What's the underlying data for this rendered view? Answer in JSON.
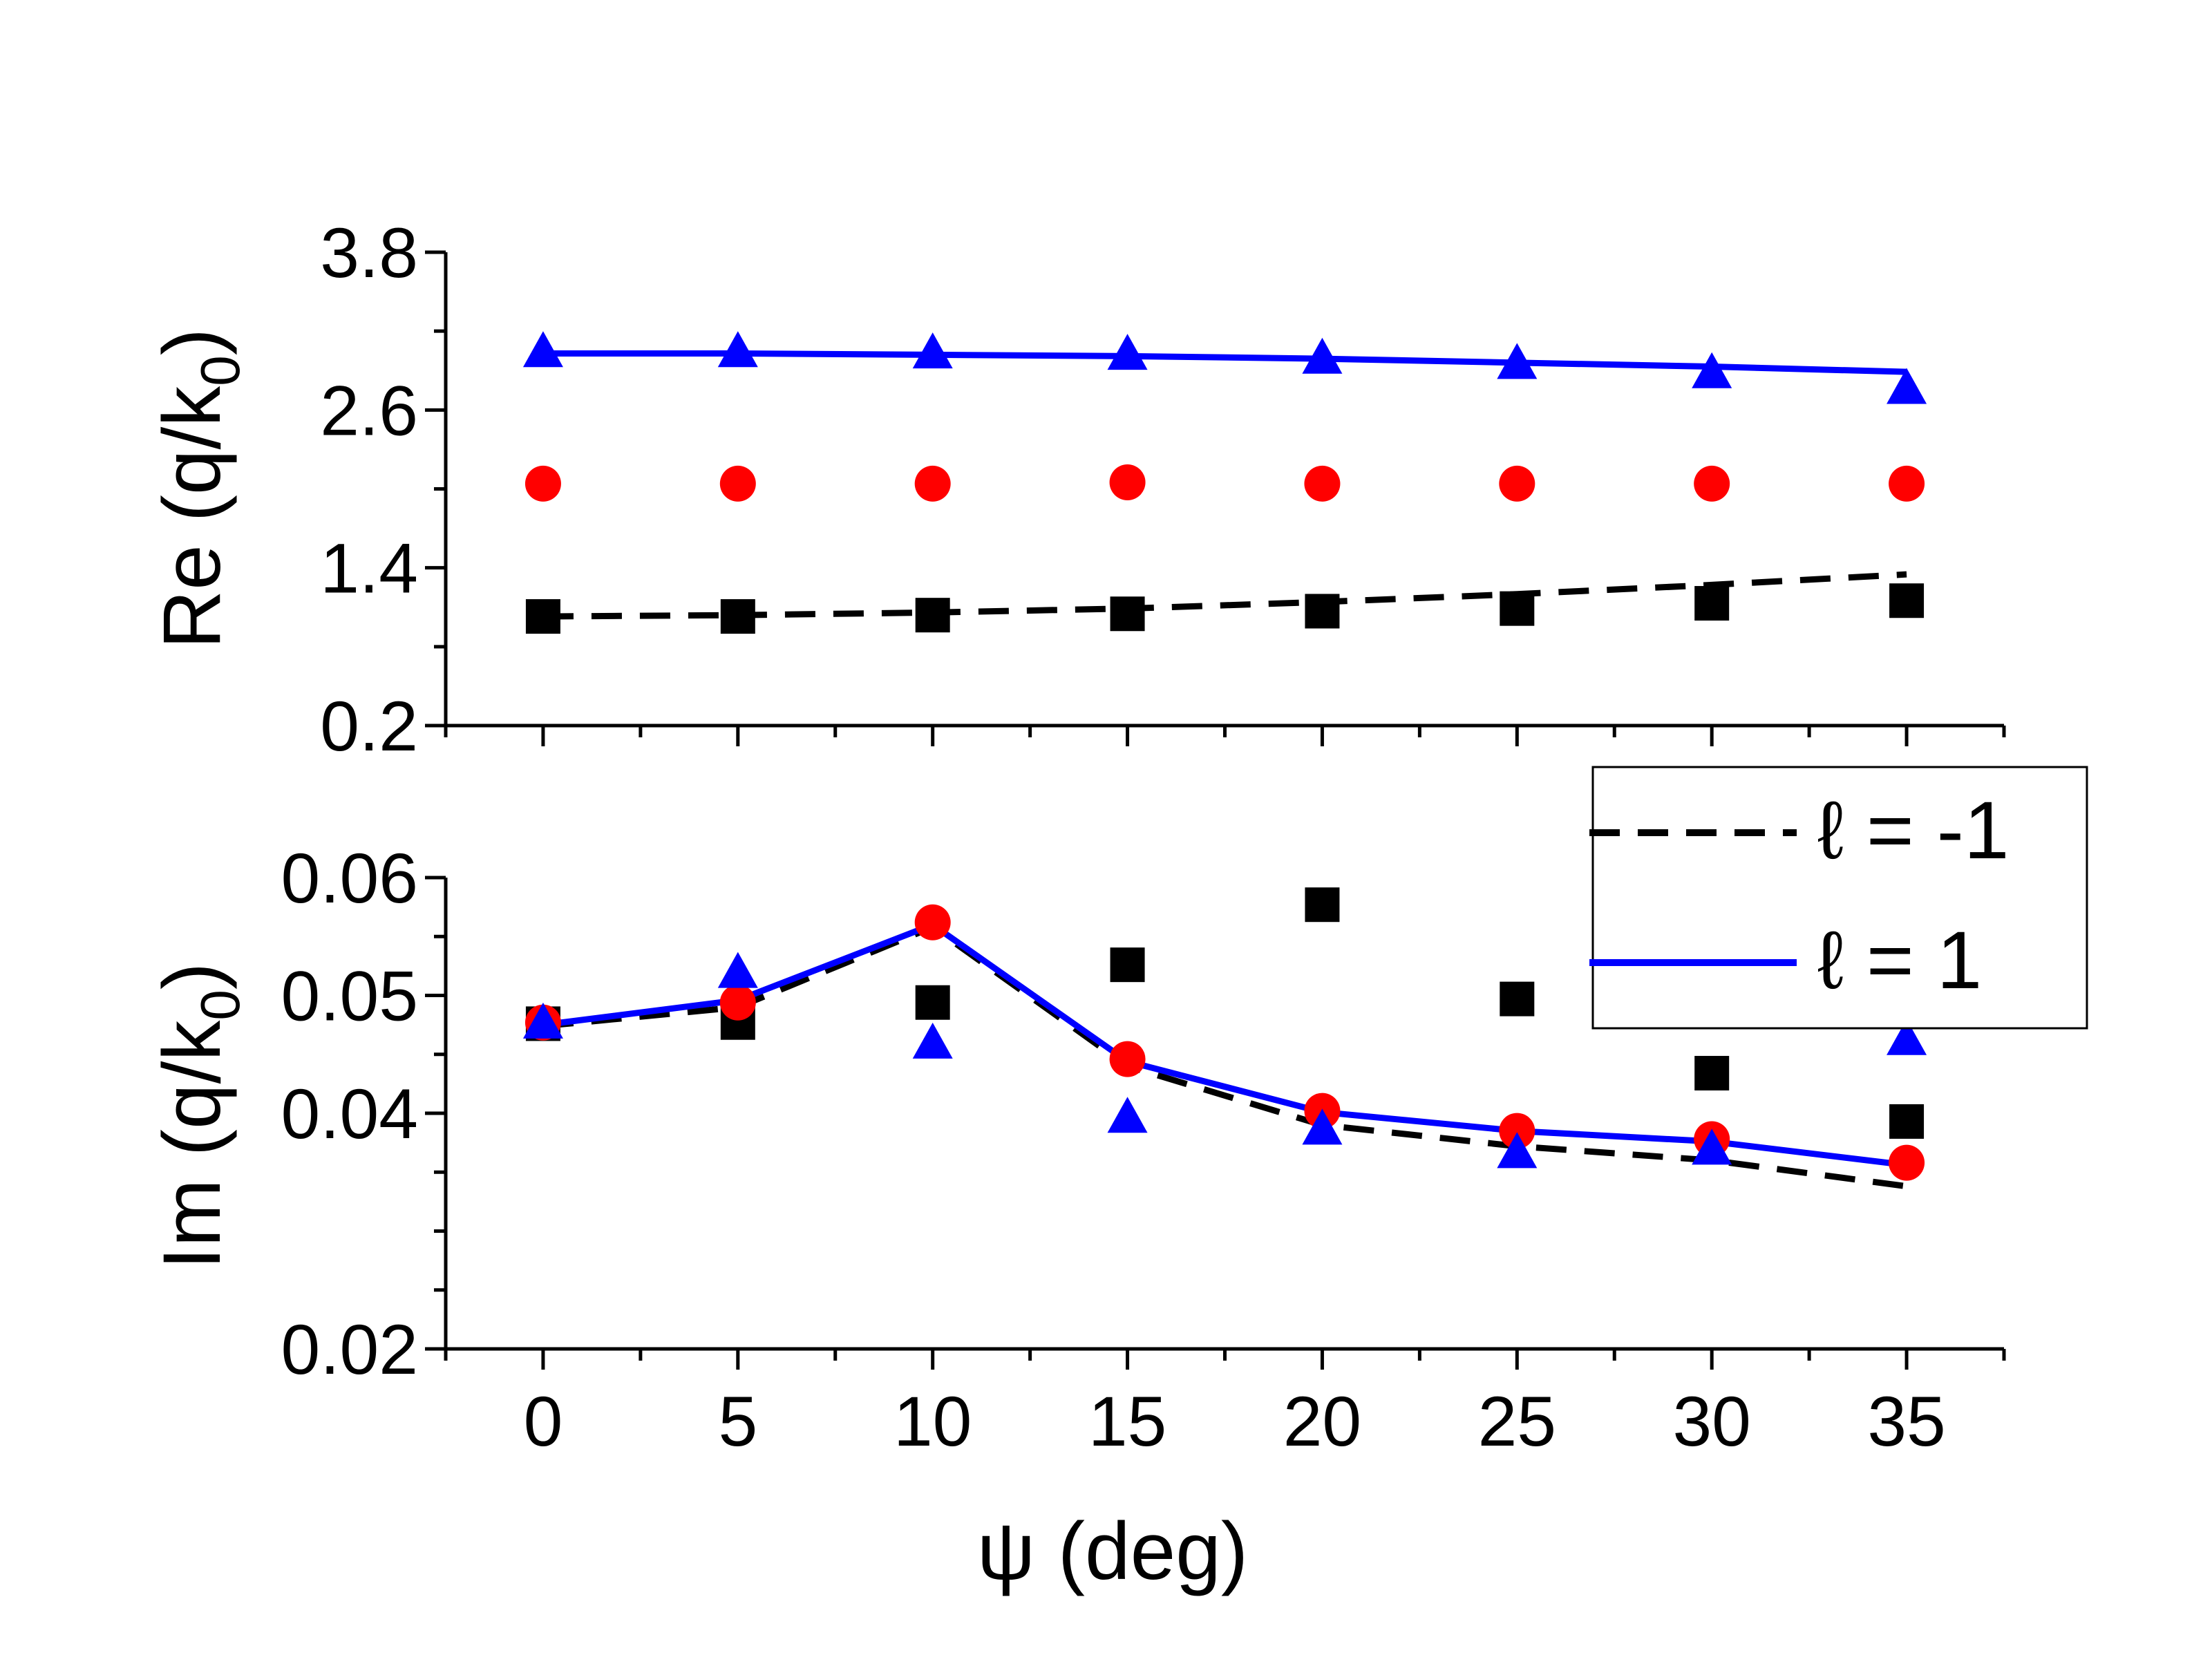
{
  "chart_data": [
    {
      "type": "scatter",
      "panel": "top",
      "ylabel": "Re (q/k",
      "ylabel_sub": "0",
      "ylabel_close": ")",
      "ylim": [
        0.2,
        3.8
      ],
      "yticks": [
        0.2,
        1.4,
        2.6,
        3.8
      ],
      "ytick_labels": [
        "0.2",
        "1.4",
        "2.6",
        "3.8"
      ],
      "x": [
        0,
        5,
        10,
        15,
        20,
        25,
        30,
        35
      ],
      "xlim": [
        -2.5,
        37.5
      ],
      "series": [
        {
          "marker": "triangle",
          "color": "#0000ff",
          "values": [
            3.03,
            3.03,
            3.02,
            3.01,
            2.98,
            2.94,
            2.87,
            2.75
          ]
        },
        {
          "marker": "circle",
          "color": "#ff0000",
          "values": [
            2.04,
            2.04,
            2.04,
            2.05,
            2.04,
            2.04,
            2.04,
            2.04
          ]
        },
        {
          "marker": "square",
          "color": "#000000",
          "values": [
            1.03,
            1.03,
            1.04,
            1.05,
            1.07,
            1.09,
            1.13,
            1.15
          ]
        }
      ],
      "lines": [
        {
          "name": "ℓ = 1",
          "style": "solid",
          "color": "#0000ff",
          "values": [
            3.03,
            3.03,
            3.02,
            3.01,
            2.99,
            2.96,
            2.93,
            2.89
          ]
        },
        {
          "name": "ℓ = -1",
          "style": "dashed",
          "color": "#000000",
          "values": [
            1.03,
            1.04,
            1.06,
            1.09,
            1.14,
            1.2,
            1.27,
            1.35
          ]
        }
      ]
    },
    {
      "type": "scatter",
      "panel": "bottom",
      "xlabel": "ψ (deg)",
      "ylabel": "Im (q/k",
      "ylabel_sub": "0",
      "ylabel_close": ")",
      "ylim": [
        0.02,
        0.06
      ],
      "yticks": [
        0.02,
        0.04,
        0.05,
        0.06
      ],
      "ytick_labels": [
        "0.02",
        "0.04",
        "0.05",
        "0.06"
      ],
      "x": [
        0,
        5,
        10,
        15,
        20,
        25,
        30,
        35
      ],
      "xticks": [
        0,
        5,
        10,
        15,
        20,
        25,
        30,
        35
      ],
      "xtick_labels": [
        "0",
        "5",
        "10",
        "15",
        "20",
        "25",
        "30",
        "35"
      ],
      "xlim": [
        -2.5,
        37.5
      ],
      "series": [
        {
          "marker": "square",
          "color": "#000000",
          "values": [
            0.0476,
            0.0477,
            0.0494,
            0.0526,
            0.0577,
            0.0497,
            0.0434,
            0.0393
          ]
        },
        {
          "marker": "circle",
          "color": "#ff0000",
          "values": [
            0.0477,
            0.0494,
            0.0562,
            0.0446,
            0.0402,
            0.0385,
            0.0378,
            0.0358
          ]
        },
        {
          "marker": "triangle",
          "color": "#0000ff",
          "values": [
            0.0475,
            0.0518,
            0.0458,
            0.0395,
            0.0385,
            0.0365,
            0.0368,
            0.0461
          ]
        }
      ],
      "lines": [
        {
          "name": "ℓ = -1",
          "style": "dashed",
          "color": "#000000",
          "values": [
            0.0474,
            0.049,
            0.0558,
            0.044,
            0.039,
            0.0372,
            0.036,
            0.0338
          ]
        },
        {
          "name": "ℓ = 1",
          "style": "solid",
          "color": "#0000ff",
          "values": [
            0.0475,
            0.0496,
            0.056,
            0.0444,
            0.0401,
            0.0385,
            0.0376,
            0.0356
          ]
        }
      ]
    }
  ],
  "legend": {
    "placement": "bottom-panel top-right",
    "entries": [
      {
        "label": "ℓ = -1",
        "style": "dashed",
        "color": "#000000"
      },
      {
        "label": "ℓ = 1",
        "style": "solid",
        "color": "#0000ff"
      }
    ]
  }
}
